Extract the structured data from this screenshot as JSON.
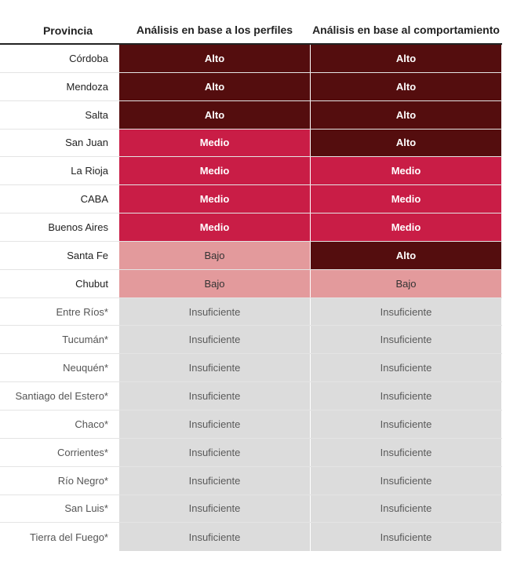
{
  "chart_data": {
    "type": "table",
    "columns": [
      "Provincia",
      "Análisis en base a los perfiles",
      "Análisis en base al comportamiento"
    ],
    "rows": [
      {
        "provincia": "Córdoba",
        "perfiles": "Alto",
        "comportamiento": "Alto"
      },
      {
        "provincia": "Mendoza",
        "perfiles": "Alto",
        "comportamiento": "Alto"
      },
      {
        "provincia": "Salta",
        "perfiles": "Alto",
        "comportamiento": "Alto"
      },
      {
        "provincia": "San Juan",
        "perfiles": "Medio",
        "comportamiento": "Alto"
      },
      {
        "provincia": "La Rioja",
        "perfiles": "Medio",
        "comportamiento": "Medio"
      },
      {
        "provincia": "CABA",
        "perfiles": "Medio",
        "comportamiento": "Medio"
      },
      {
        "provincia": "Buenos Aires",
        "perfiles": "Medio",
        "comportamiento": "Medio"
      },
      {
        "provincia": "Santa Fe",
        "perfiles": "Bajo",
        "comportamiento": "Alto"
      },
      {
        "provincia": "Chubut",
        "perfiles": "Bajo",
        "comportamiento": "Bajo"
      },
      {
        "provincia": "Entre Ríos*",
        "perfiles": "Insuficiente",
        "comportamiento": "Insuficiente"
      },
      {
        "provincia": "Tucumán*",
        "perfiles": "Insuficiente",
        "comportamiento": "Insuficiente"
      },
      {
        "provincia": "Neuquén*",
        "perfiles": "Insuficiente",
        "comportamiento": "Insuficiente"
      },
      {
        "provincia": "Santiago del Estero*",
        "perfiles": "Insuficiente",
        "comportamiento": "Insuficiente"
      },
      {
        "provincia": "Chaco*",
        "perfiles": "Insuficiente",
        "comportamiento": "Insuficiente"
      },
      {
        "provincia": "Corrientes*",
        "perfiles": "Insuficiente",
        "comportamiento": "Insuficiente"
      },
      {
        "provincia": "Río Negro*",
        "perfiles": "Insuficiente",
        "comportamiento": "Insuficiente"
      },
      {
        "provincia": "San Luis*",
        "perfiles": "Insuficiente",
        "comportamiento": "Insuficiente"
      },
      {
        "provincia": "Tierra del Fuego*",
        "perfiles": "Insuficiente",
        "comportamiento": "Insuficiente"
      }
    ],
    "level_colors": {
      "Alto": "#540d0e",
      "Medio": "#c91d46",
      "Bajo": "#e39a9c",
      "Insuficiente": "#dcdcdc"
    }
  }
}
